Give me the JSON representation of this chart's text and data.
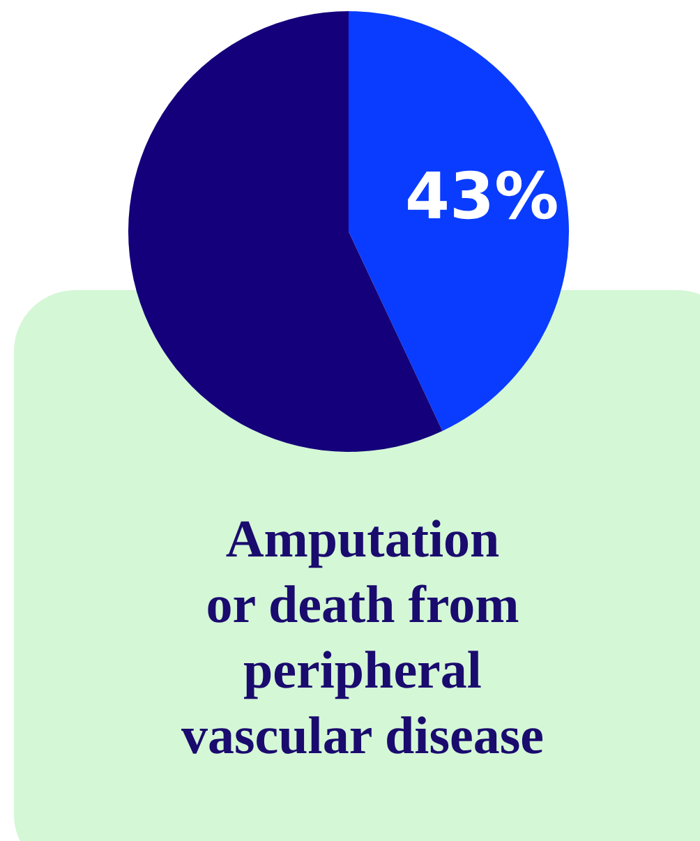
{
  "chart_data": {
    "type": "pie",
    "title": "Amputation\nor death from\nperipheral\nvascular disease",
    "categories": [
      null,
      null
    ],
    "values": [
      43,
      57
    ],
    "colors": [
      "#0a3cff",
      "#14007a"
    ],
    "value_labels": [
      "43%",
      null
    ],
    "legend": false
  }
}
